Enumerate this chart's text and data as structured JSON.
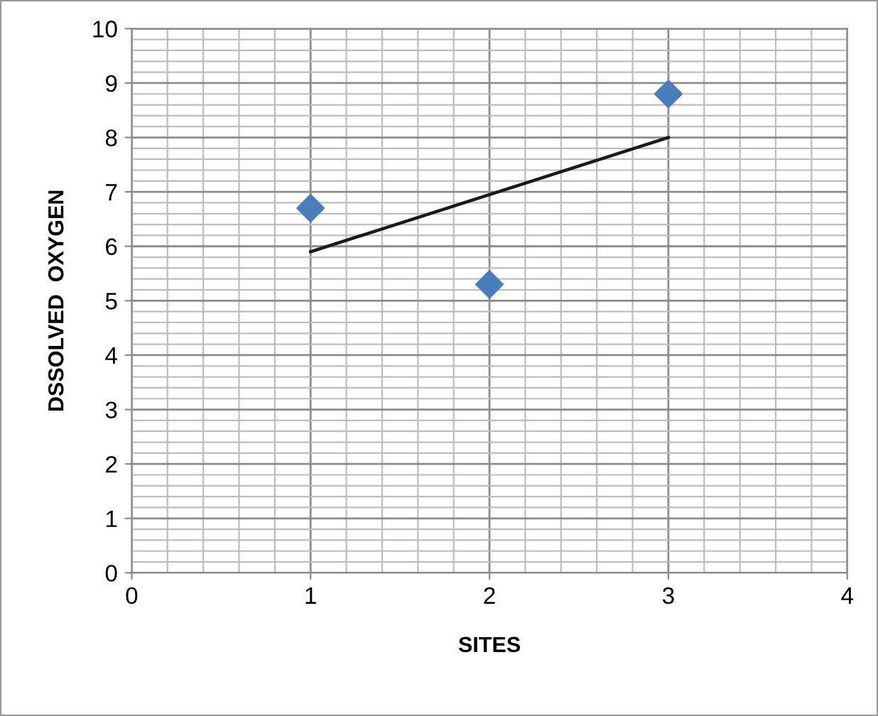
{
  "chart_data": {
    "type": "scatter",
    "xlabel": "SITES",
    "ylabel": "DSSOLVED  OXYGEN",
    "series": [
      {
        "color": "#4a7ebb",
        "marker": "diamond",
        "x": [
          1,
          2,
          3
        ],
        "values": [
          6.7,
          5.3,
          8.8
        ]
      },
      {
        "type": "line",
        "color": "#1a1a1a",
        "marker": "none",
        "line_style": "solid",
        "x": [
          1,
          3
        ],
        "values": [
          5.9,
          8.0
        ]
      }
    ],
    "xlim": [
      0,
      4
    ],
    "xticks": [
      0,
      1,
      2,
      3,
      4
    ],
    "ylim": [
      0,
      10
    ],
    "yticks": [
      0,
      1,
      2,
      3,
      4,
      5,
      6,
      7,
      8,
      9,
      10
    ],
    "grid": true,
    "legend": false
  }
}
